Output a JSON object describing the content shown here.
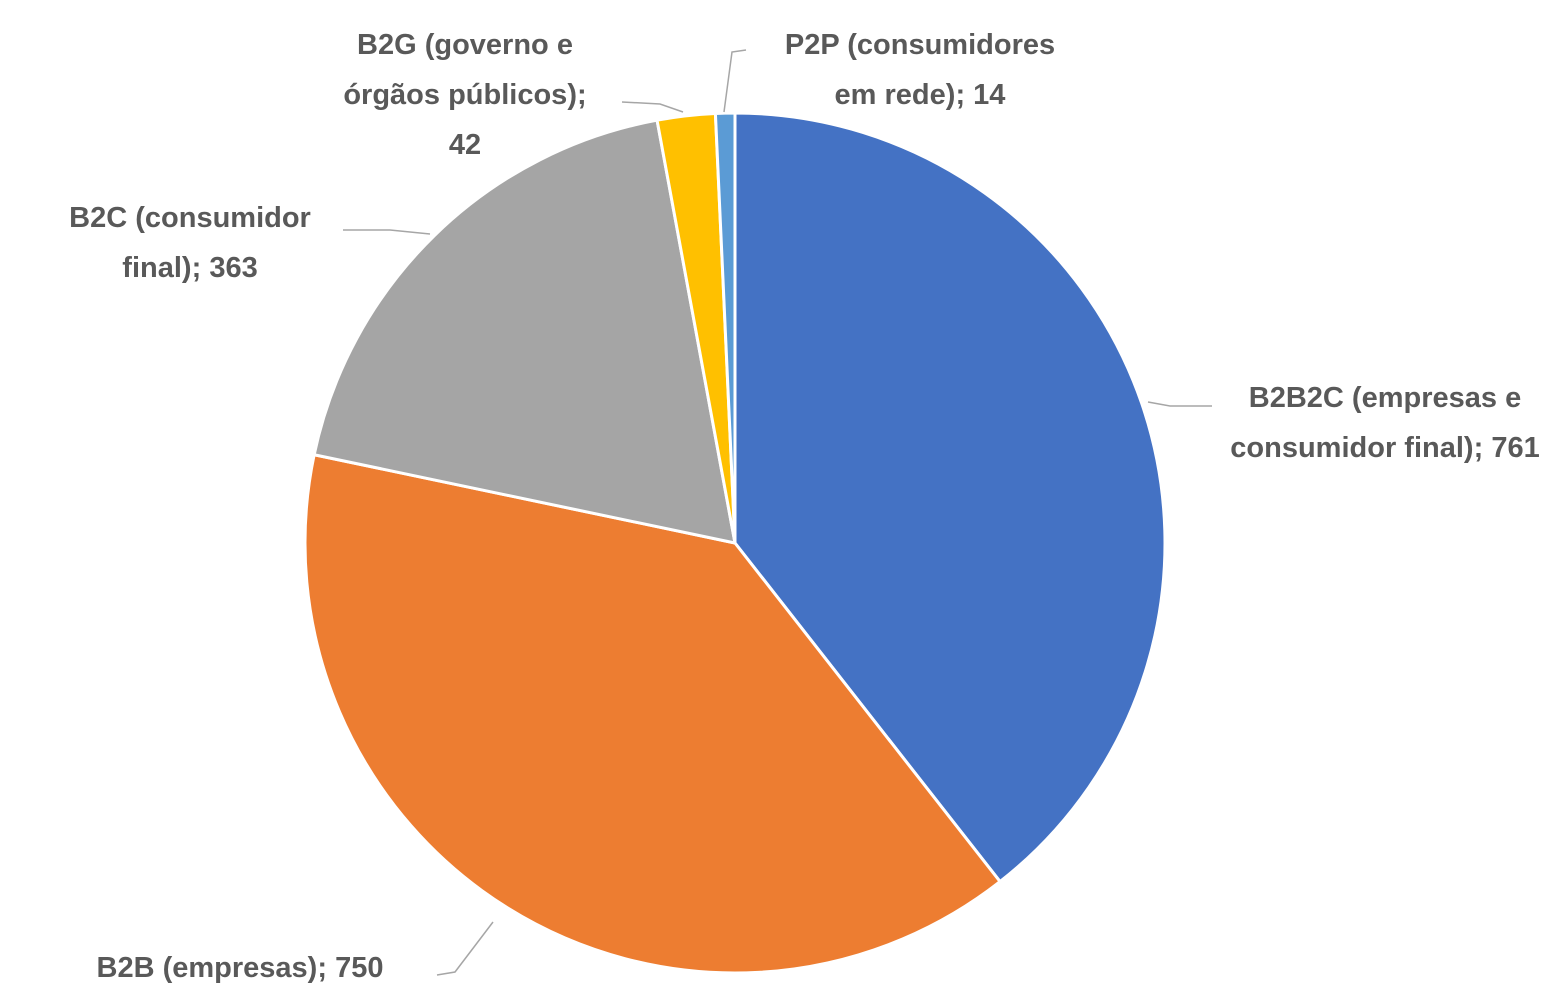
{
  "chart_data": {
    "type": "pie",
    "categories": [
      "B2B2C (empresas e consumidor final)",
      "B2B (empresas)",
      "B2C (consumidor final)",
      "B2G (governo e órgãos públicos)",
      "P2P (consumidores em rede)"
    ],
    "values": [
      761,
      750,
      363,
      42,
      14
    ],
    "colors": [
      "#4472c4",
      "#ed7d31",
      "#a5a5a5",
      "#ffc000",
      "#5b9bd5"
    ],
    "separator": ";"
  }
}
